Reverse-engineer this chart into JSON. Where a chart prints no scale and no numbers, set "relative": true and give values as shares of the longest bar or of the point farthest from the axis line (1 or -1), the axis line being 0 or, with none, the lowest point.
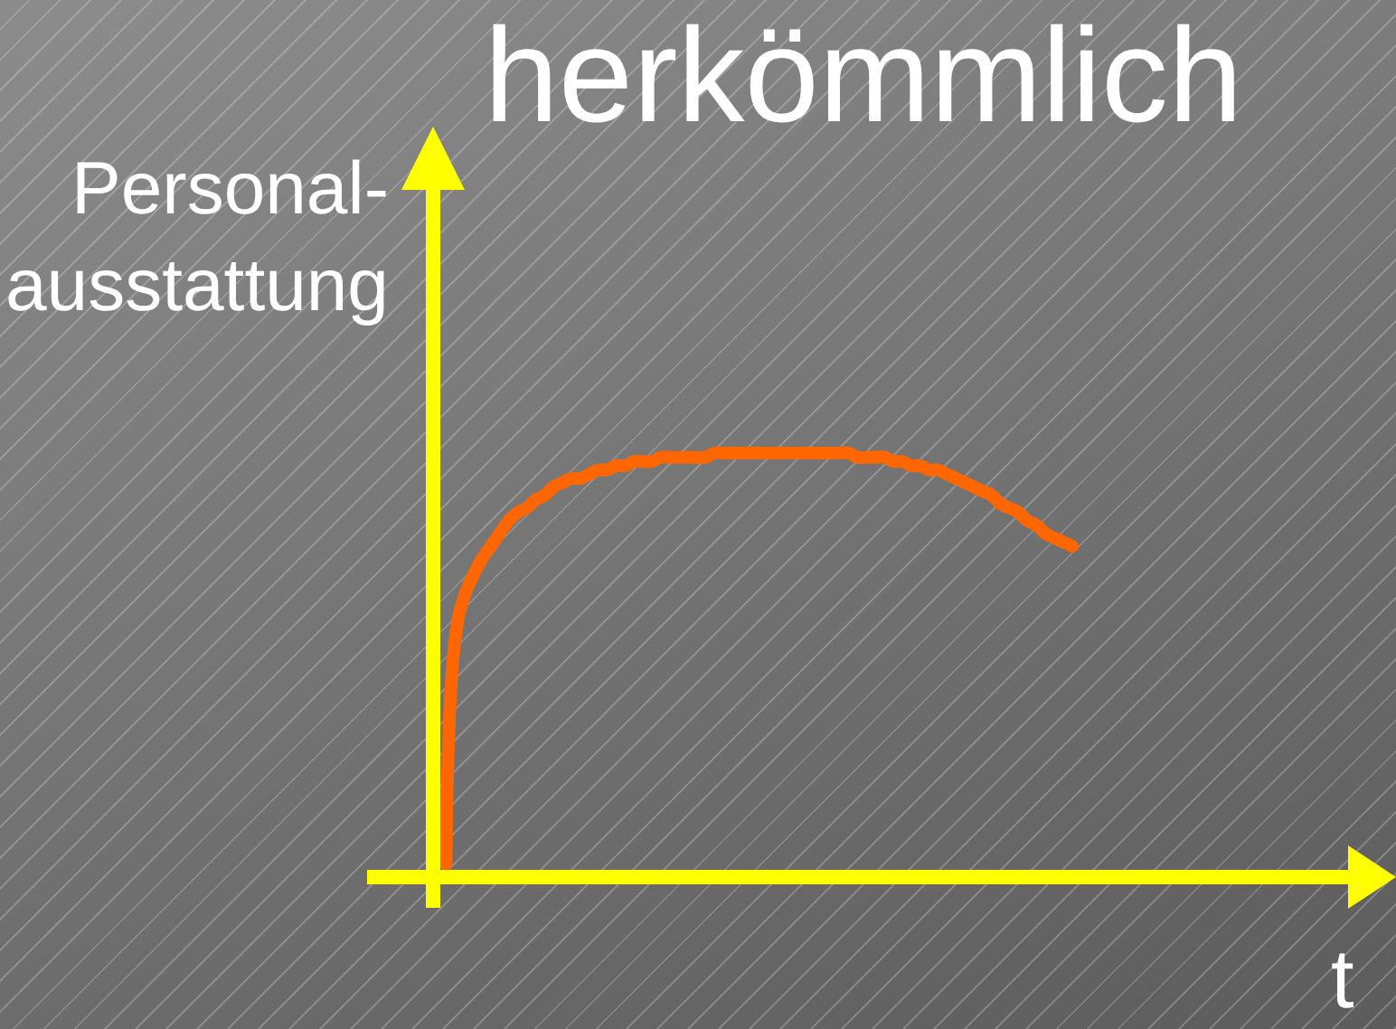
{
  "chart_data": {
    "type": "line",
    "title": "herkömmlich",
    "xlabel": "t",
    "ylabel": "Personal-\nausstattung",
    "relative": true,
    "line_style": "solid",
    "categories": [
      null,
      null,
      null,
      null,
      null,
      null,
      null,
      null,
      null,
      null,
      null,
      null,
      null,
      null,
      null,
      null,
      null,
      null,
      null,
      null,
      null,
      null,
      null,
      null,
      null,
      null,
      null,
      null,
      null,
      null,
      null,
      null,
      null,
      null,
      null,
      null,
      null,
      null,
      null,
      null,
      null,
      null,
      null,
      null,
      null,
      null,
      null,
      null,
      null,
      null,
      null,
      null,
      null,
      null,
      null,
      null,
      null,
      null,
      null,
      null,
      null,
      null,
      null,
      null,
      null,
      null,
      null,
      null,
      null,
      null,
      null
    ],
    "series": [
      {
        "color": "#ff6600",
        "values": [
          0.03,
          0.56,
          0.66,
          0.71,
          0.75,
          0.78,
          0.81,
          0.84,
          0.86,
          0.87,
          0.89,
          0.9,
          0.92,
          0.93,
          0.94,
          0.94,
          0.95,
          0.96,
          0.96,
          0.97,
          0.97,
          0.98,
          0.98,
          0.98,
          0.99,
          0.99,
          0.99,
          0.99,
          0.99,
          0.99,
          1,
          1,
          1,
          1,
          1,
          1,
          1,
          1,
          1,
          1,
          1,
          1,
          1,
          1,
          1,
          1,
          0.99,
          0.99,
          0.99,
          0.99,
          0.98,
          0.98,
          0.97,
          0.97,
          0.96,
          0.96,
          0.95,
          0.94,
          0.93,
          0.92,
          0.91,
          0.9,
          0.88,
          0.87,
          0.86,
          0.84,
          0.83,
          0.81,
          0.8,
          0.79,
          0.78
        ]
      }
    ]
  }
}
